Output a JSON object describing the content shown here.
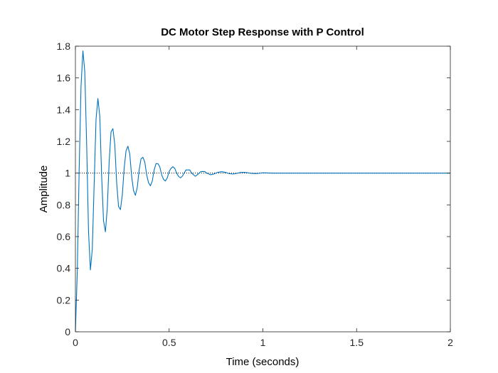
{
  "chart_data": {
    "type": "line",
    "title": "DC Motor Step Response with P Control",
    "xlabel": "Time (seconds)",
    "ylabel": "Amplitude",
    "xlim": [
      0,
      2
    ],
    "ylim": [
      0,
      1.8
    ],
    "xticks": [
      0,
      0.5,
      1,
      1.5,
      2
    ],
    "xtick_labels": [
      "0",
      "0.5",
      "1",
      "1.5",
      "2"
    ],
    "yticks": [
      0,
      0.2,
      0.4,
      0.6,
      0.8,
      1,
      1.2,
      1.4,
      1.6,
      1.8
    ],
    "ytick_labels": [
      "0",
      "0.2",
      "0.4",
      "0.6",
      "0.8",
      "1",
      "1.2",
      "1.4",
      "1.6",
      "1.8"
    ],
    "grid": false,
    "series": [
      {
        "color": "#0072BD",
        "x": [
          0,
          0.01,
          0.02,
          0.03,
          0.04,
          0.05,
          0.06,
          0.07,
          0.08,
          0.09,
          0.1,
          0.11,
          0.12,
          0.13,
          0.14,
          0.15,
          0.16,
          0.17,
          0.18,
          0.19,
          0.2,
          0.21,
          0.22,
          0.23,
          0.24,
          0.25,
          0.26,
          0.27,
          0.28,
          0.29,
          0.3,
          0.31,
          0.32,
          0.33,
          0.34,
          0.35,
          0.36,
          0.37,
          0.38,
          0.39,
          0.4,
          0.41,
          0.42,
          0.43,
          0.44,
          0.45,
          0.46,
          0.47,
          0.48,
          0.49,
          0.5,
          0.51,
          0.52,
          0.53,
          0.54,
          0.55,
          0.56,
          0.57,
          0.58,
          0.59,
          0.6,
          0.61,
          0.62,
          0.63,
          0.64,
          0.65,
          0.66,
          0.67,
          0.68,
          0.69,
          0.7,
          0.72,
          0.74,
          0.76,
          0.78,
          0.8,
          0.82,
          0.84,
          0.86,
          0.88,
          0.9,
          0.92,
          0.94,
          0.96,
          0.98,
          1.0,
          1.05,
          1.1,
          1.2,
          1.3,
          1.5,
          1.7,
          2.0
        ],
        "y": [
          0,
          0.38,
          1.02,
          1.55,
          1.77,
          1.64,
          1.18,
          0.63,
          0.39,
          0.52,
          0.93,
          1.34,
          1.47,
          1.36,
          0.98,
          0.7,
          0.63,
          0.78,
          1.07,
          1.26,
          1.28,
          1.18,
          0.94,
          0.79,
          0.77,
          0.86,
          1.03,
          1.14,
          1.17,
          1.12,
          0.98,
          0.89,
          0.86,
          0.91,
          1.02,
          1.09,
          1.1,
          1.07,
          0.99,
          0.94,
          0.92,
          0.95,
          1.02,
          1.06,
          1.06,
          1.04,
          0.99,
          0.96,
          0.95,
          0.97,
          1.01,
          1.03,
          1.04,
          1.03,
          1.0,
          0.98,
          0.97,
          0.98,
          1.0,
          1.02,
          1.02,
          1.02,
          1.0,
          0.99,
          0.98,
          0.99,
          1.0,
          1.01,
          1.01,
          1.01,
          1.0,
          0.99,
          0.995,
          1.005,
          1.009,
          1.005,
          0.997,
          0.994,
          0.998,
          1.004,
          1.005,
          1.002,
          0.998,
          0.997,
          0.999,
          1.002,
          1.0,
          1.0,
          1.0,
          1.0,
          1.0,
          1.0,
          1.0
        ]
      }
    ],
    "reference_line": {
      "y": 1,
      "style": "dotted",
      "color": "#000000"
    }
  }
}
